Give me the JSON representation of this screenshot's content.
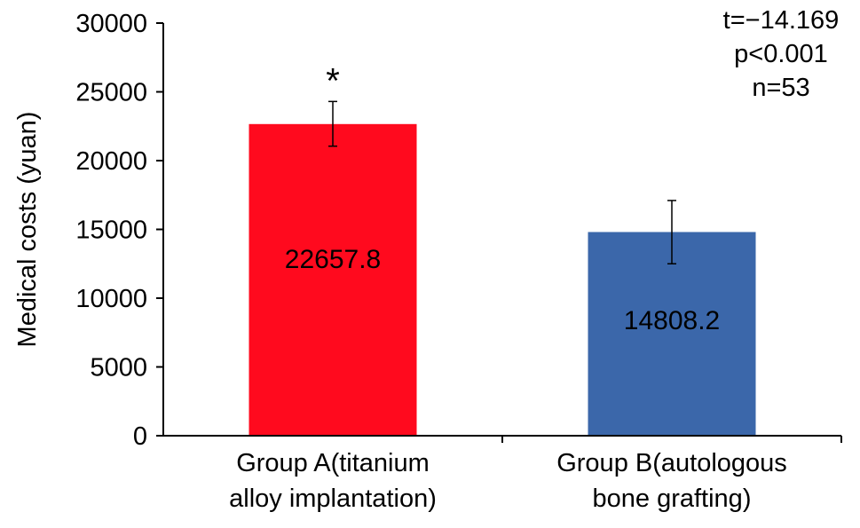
{
  "chart_data": {
    "type": "bar",
    "categories": [
      [
        "Group A(titanium",
        "alloy implantation)"
      ],
      [
        "Group B(autologous",
        "bone grafting)"
      ]
    ],
    "values": [
      22657.8,
      14808.2
    ],
    "value_labels": [
      "22657.8",
      "14808.2"
    ],
    "error_bars": [
      {
        "low": 21050,
        "high": 24300
      },
      {
        "low": 12500,
        "high": 17100
      }
    ],
    "significance_markers": [
      "*",
      ""
    ],
    "bar_colors": [
      "#ff0a1e",
      "#3b67aa"
    ],
    "ylabel": "Medical costs (yuan)",
    "xlabel": "",
    "ylim": [
      0,
      30000
    ],
    "yticks": [
      0,
      5000,
      10000,
      15000,
      20000,
      25000,
      30000
    ],
    "grid": false,
    "annotations": [
      "t=−14.169",
      "p<0.001",
      "n=53"
    ]
  }
}
